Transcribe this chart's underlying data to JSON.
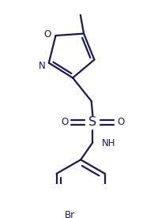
{
  "bg_color": "#ffffff",
  "line_color": "#1a1a4e",
  "line_width": 1.6,
  "font_size": 8.5,
  "font_color": "#1a1a4e",
  "figsize": [
    2.01,
    2.76
  ],
  "dpi": 100,
  "xlim": [
    0,
    201
  ],
  "ylim": [
    0,
    276
  ]
}
